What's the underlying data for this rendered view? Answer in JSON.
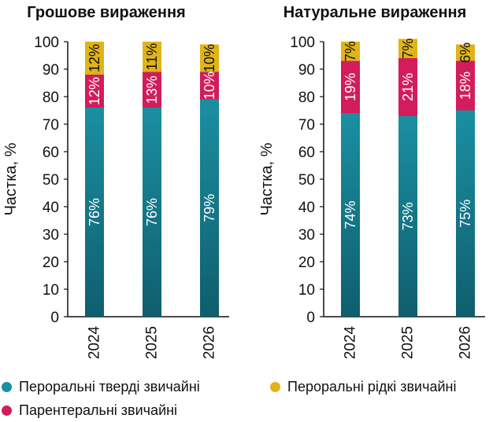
{
  "colors": {
    "series_oral_solid": "#1a8fa1",
    "series_oral_solid_dark": "#0f5e6d",
    "series_parenteral": "#d31c5c",
    "series_oral_liquid": "#e0b417"
  },
  "legend": [
    {
      "name": "Пероральні тверді звичайні",
      "color": "#1a8fa1"
    },
    {
      "name": "Пероральні рідкі звичайні",
      "color": "#e0b417"
    },
    {
      "name": "Парентеральні звичайні",
      "color": "#d31c5c"
    }
  ],
  "chart_data": [
    {
      "type": "bar",
      "stacked": true,
      "title": "Грошове вираження",
      "ylabel": "Частка, %",
      "ylim": [
        0,
        100
      ],
      "yticks": [
        0,
        10,
        20,
        30,
        40,
        50,
        60,
        70,
        80,
        90,
        100
      ],
      "categories": [
        "2024",
        "2025",
        "2026"
      ],
      "series": [
        {
          "name": "Пероральні тверді звичайні",
          "values": [
            76,
            76,
            79
          ],
          "labels": [
            "76%",
            "76%",
            "79%"
          ]
        },
        {
          "name": "Парентеральні звичайні",
          "values": [
            12,
            13,
            10
          ],
          "labels": [
            "12%",
            "13%",
            "10%"
          ]
        },
        {
          "name": "Пероральні рідкі звичайні",
          "values": [
            12,
            11,
            10
          ],
          "labels": [
            "12%",
            "11%",
            "10%"
          ]
        }
      ]
    },
    {
      "type": "bar",
      "stacked": true,
      "title": "Натуральне вираження",
      "ylabel": "Частка, %",
      "ylim": [
        0,
        100
      ],
      "yticks": [
        0,
        10,
        20,
        30,
        40,
        50,
        60,
        70,
        80,
        90,
        100
      ],
      "categories": [
        "2024",
        "2025",
        "2026"
      ],
      "series": [
        {
          "name": "Пероральні тверді звичайні",
          "values": [
            74,
            73,
            75
          ],
          "labels": [
            "74%",
            "73%",
            "75%"
          ]
        },
        {
          "name": "Парентеральні звичайні",
          "values": [
            19,
            21,
            18
          ],
          "labels": [
            "19%",
            "21%",
            "18%"
          ]
        },
        {
          "name": "Пероральні рідкі звичайні",
          "values": [
            7,
            7,
            6
          ],
          "labels": [
            "7%",
            "7%",
            "6%"
          ]
        }
      ]
    }
  ]
}
